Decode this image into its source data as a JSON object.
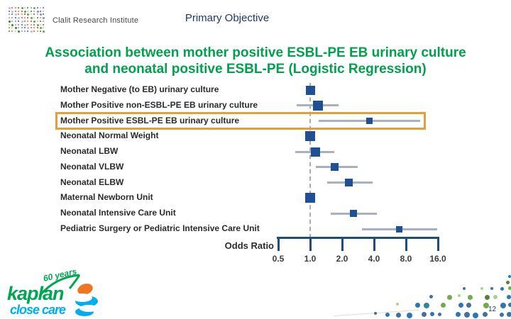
{
  "header": {
    "logo_text": "Clalit Research Institute",
    "page_heading": "Primary Objective"
  },
  "title": {
    "line1": "Association between mother positive ESBL-PE EB urinary culture",
    "line2": "and neonatal positive ESBL-PE (Logistic Regression)"
  },
  "chart_data": {
    "type": "forest",
    "xlabel": "Odds Ratio",
    "x_scale": "log2",
    "x_ticks": [
      0.5,
      1.0,
      2.0,
      4.0,
      8.0,
      16.0
    ],
    "x_tick_labels": [
      "0.5",
      "1.0",
      "2.0",
      "4.0",
      "8.0",
      "16.0"
    ],
    "xlim": [
      0.47,
      16.5
    ],
    "reference_line": 1.0,
    "grid": false,
    "rows": [
      {
        "label": "Mother Negative (to EB) urinary culture",
        "or": 1.0,
        "ci_low": null,
        "ci_high": null,
        "reference": true,
        "highlighted": false,
        "marker_size": 13
      },
      {
        "label": "Mother Positive non-ESBL-PE EB urinary culture",
        "or": 1.18,
        "ci_low": 0.75,
        "ci_high": 1.85,
        "reference": false,
        "highlighted": false,
        "marker_size": 14
      },
      {
        "label": "Mother Positive ESBL-PE EB urinary culture",
        "or": 3.6,
        "ci_low": 1.2,
        "ci_high": 10.9,
        "reference": false,
        "highlighted": true,
        "marker_size": 9
      },
      {
        "label": "Neonatal Normal Weight",
        "or": 1.0,
        "ci_low": null,
        "ci_high": null,
        "reference": true,
        "highlighted": false,
        "marker_size": 14
      },
      {
        "label": "Neonatal LBW",
        "or": 1.12,
        "ci_low": 0.72,
        "ci_high": 1.7,
        "reference": false,
        "highlighted": false,
        "marker_size": 13
      },
      {
        "label": "Neonatal VLBW",
        "or": 1.7,
        "ci_low": 1.13,
        "ci_high": 2.8,
        "reference": false,
        "highlighted": false,
        "marker_size": 11
      },
      {
        "label": "Neonatal ELBW",
        "or": 2.3,
        "ci_low": 1.45,
        "ci_high": 3.85,
        "reference": false,
        "highlighted": false,
        "marker_size": 11
      },
      {
        "label": "Maternal Newborn Unit",
        "or": 1.0,
        "ci_low": null,
        "ci_high": null,
        "reference": true,
        "highlighted": false,
        "marker_size": 14
      },
      {
        "label": "Neonatal Intensive Care Unit",
        "or": 2.55,
        "ci_low": 1.57,
        "ci_high": 4.25,
        "reference": false,
        "highlighted": false,
        "marker_size": 10
      },
      {
        "label": "Pediatric Surgery or Pediatric Intensive Care Unit",
        "or": 6.9,
        "ci_low": 3.1,
        "ci_high": 15.8,
        "reference": false,
        "highlighted": false,
        "marker_size": 9
      }
    ]
  },
  "footer": {
    "page_number": "12",
    "logo": {
      "brand": "kaplan",
      "tagline": "close care",
      "badge": "60 years"
    }
  },
  "colors": {
    "title_green": "#00A14D",
    "heading_blue": "#1F3864",
    "marker_blue": "#1F5096",
    "whisker_gray": "#A9B1C0",
    "axis_blue": "#1F4E79",
    "highlight_orange": "#E1A039",
    "kaplan_green": "#00A651",
    "kaplan_cyan": "#00AEEF",
    "kaplan_orange": "#EE7623"
  }
}
